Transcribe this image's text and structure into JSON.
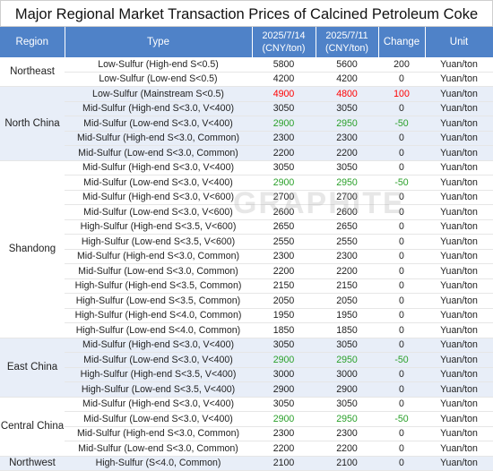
{
  "title": "Major Regional Market Transaction Prices of Calcined Petroleum Coke",
  "headers": {
    "region": "Region",
    "type": "Type",
    "date1": "2025/7/14",
    "date1_unit": "(CNY/ton)",
    "date2": "2025/7/11",
    "date2_unit": "(CNY/ton)",
    "change": "Change",
    "unit": "Unit"
  },
  "colors": {
    "header_bg": "#4f82c8",
    "increase": "#ff0000",
    "decrease": "#2aa02a"
  },
  "watermark": "GRAPHITE",
  "groups": [
    {
      "region": "Northeast",
      "rows": [
        {
          "type": "Low-Sulfur (High-end S<0.5)",
          "d1": "5800",
          "d2": "5600",
          "change": "200",
          "unit": "Yuan/ton",
          "trend": ""
        },
        {
          "type": "Low-Sulfur (Low-end S<0.5)",
          "d1": "4200",
          "d2": "4200",
          "change": "0",
          "unit": "Yuan/ton",
          "trend": ""
        }
      ]
    },
    {
      "region": "North China",
      "rows": [
        {
          "type": "Low-Sulfur (Mainstream S<0.5)",
          "d1": "4900",
          "d2": "4800",
          "change": "100",
          "unit": "Yuan/ton",
          "trend": "up"
        },
        {
          "type": "Mid-Sulfur (High-end S<3.0, V<400)",
          "d1": "3050",
          "d2": "3050",
          "change": "0",
          "unit": "Yuan/ton",
          "trend": ""
        },
        {
          "type": "Mid-Sulfur (Low-end S<3.0, V<400)",
          "d1": "2900",
          "d2": "2950",
          "change": "-50",
          "unit": "Yuan/ton",
          "trend": "down"
        },
        {
          "type": "Mid-Sulfur (High-end S<3.0, Common)",
          "d1": "2300",
          "d2": "2300",
          "change": "0",
          "unit": "Yuan/ton",
          "trend": ""
        },
        {
          "type": "Mid-Sulfur (Low-end S<3.0, Common)",
          "d1": "2200",
          "d2": "2200",
          "change": "0",
          "unit": "Yuan/ton",
          "trend": ""
        }
      ]
    },
    {
      "region": "Shandong",
      "rows": [
        {
          "type": "Mid-Sulfur (High-end S<3.0, V<400)",
          "d1": "3050",
          "d2": "3050",
          "change": "0",
          "unit": "Yuan/ton",
          "trend": ""
        },
        {
          "type": "Mid-Sulfur (Low-end S<3.0, V<400)",
          "d1": "2900",
          "d2": "2950",
          "change": "-50",
          "unit": "Yuan/ton",
          "trend": "down"
        },
        {
          "type": "Mid-Sulfur (High-end S<3.0, V<600)",
          "d1": "2700",
          "d2": "2700",
          "change": "0",
          "unit": "Yuan/ton",
          "trend": ""
        },
        {
          "type": "Mid-Sulfur (Low-end S<3.0, V<600)",
          "d1": "2600",
          "d2": "2600",
          "change": "0",
          "unit": "Yuan/ton",
          "trend": ""
        },
        {
          "type": "High-Sulfur (High-end S<3.5, V<600)",
          "d1": "2650",
          "d2": "2650",
          "change": "0",
          "unit": "Yuan/ton",
          "trend": ""
        },
        {
          "type": "High-Sulfur (Low-end S<3.5, V<600)",
          "d1": "2550",
          "d2": "2550",
          "change": "0",
          "unit": "Yuan/ton",
          "trend": ""
        },
        {
          "type": "Mid-Sulfur (High-end S<3.0, Common)",
          "d1": "2300",
          "d2": "2300",
          "change": "0",
          "unit": "Yuan/ton",
          "trend": ""
        },
        {
          "type": "Mid-Sulfur (Low-end S<3.0, Common)",
          "d1": "2200",
          "d2": "2200",
          "change": "0",
          "unit": "Yuan/ton",
          "trend": ""
        },
        {
          "type": "High-Sulfur (High-end S<3.5, Common)",
          "d1": "2150",
          "d2": "2150",
          "change": "0",
          "unit": "Yuan/ton",
          "trend": ""
        },
        {
          "type": "High-Sulfur (Low-end S<3.5, Common)",
          "d1": "2050",
          "d2": "2050",
          "change": "0",
          "unit": "Yuan/ton",
          "trend": ""
        },
        {
          "type": "High-Sulfur (High-end S<4.0, Common)",
          "d1": "1950",
          "d2": "1950",
          "change": "0",
          "unit": "Yuan/ton",
          "trend": ""
        },
        {
          "type": "High-Sulfur (Low-end S<4.0, Common)",
          "d1": "1850",
          "d2": "1850",
          "change": "0",
          "unit": "Yuan/ton",
          "trend": ""
        }
      ]
    },
    {
      "region": "East China",
      "rows": [
        {
          "type": "Mid-Sulfur (High-end S<3.0, V<400)",
          "d1": "3050",
          "d2": "3050",
          "change": "0",
          "unit": "Yuan/ton",
          "trend": ""
        },
        {
          "type": "Mid-Sulfur (Low-end S<3.0, V<400)",
          "d1": "2900",
          "d2": "2950",
          "change": "-50",
          "unit": "Yuan/ton",
          "trend": "down"
        },
        {
          "type": "High-Sulfur (High-end S<3.5, V<400)",
          "d1": "3000",
          "d2": "3000",
          "change": "0",
          "unit": "Yuan/ton",
          "trend": ""
        },
        {
          "type": "High-Sulfur (Low-end S<3.5, V<400)",
          "d1": "2900",
          "d2": "2900",
          "change": "0",
          "unit": "Yuan/ton",
          "trend": ""
        }
      ]
    },
    {
      "region": "Central China",
      "rows": [
        {
          "type": "Mid-Sulfur (High-end S<3.0, V<400)",
          "d1": "3050",
          "d2": "3050",
          "change": "0",
          "unit": "Yuan/ton",
          "trend": ""
        },
        {
          "type": "Mid-Sulfur (Low-end S<3.0, V<400)",
          "d1": "2900",
          "d2": "2950",
          "change": "-50",
          "unit": "Yuan/ton",
          "trend": "down"
        },
        {
          "type": "Mid-Sulfur (High-end S<3.0, Common)",
          "d1": "2300",
          "d2": "2300",
          "change": "0",
          "unit": "Yuan/ton",
          "trend": ""
        },
        {
          "type": "Mid-Sulfur (Low-end S<3.0, Common)",
          "d1": "2200",
          "d2": "2200",
          "change": "0",
          "unit": "Yuan/ton",
          "trend": ""
        }
      ]
    },
    {
      "region": "Northwest",
      "rows": [
        {
          "type": "High-Sulfur (S<4.0, Common)",
          "d1": "2100",
          "d2": "2100",
          "change": "0",
          "unit": "Yuan/ton",
          "trend": ""
        }
      ]
    }
  ]
}
